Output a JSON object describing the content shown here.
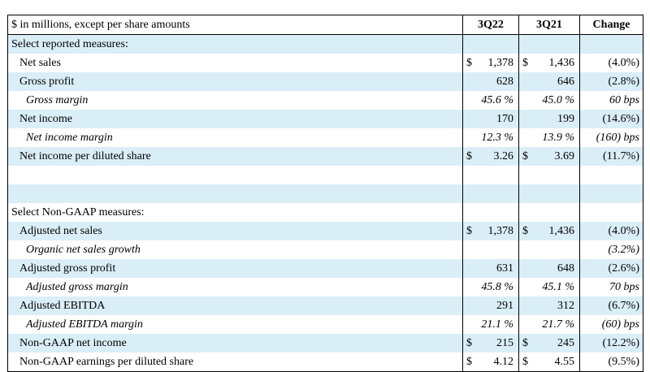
{
  "header": {
    "label": "$ in millions, except per share amounts",
    "col_a": "3Q22",
    "col_b": "3Q21",
    "col_chg": "Change"
  },
  "rows": [
    {
      "label": "Select reported measures:",
      "a": "",
      "a_cur": "",
      "b": "",
      "b_cur": "",
      "chg": "",
      "style": "section"
    },
    {
      "label": "Net sales",
      "a": "1,378",
      "a_cur": "$",
      "b": "1,436",
      "b_cur": "$",
      "chg": "(4.0%)",
      "style": "item"
    },
    {
      "label": "Gross profit",
      "a": "628",
      "a_cur": "",
      "b": "646",
      "b_cur": "",
      "chg": "(2.8%)",
      "style": "item"
    },
    {
      "label": "Gross margin",
      "a": "45.6 %",
      "a_cur": "",
      "b": "45.0 %",
      "b_cur": "",
      "chg": "60 bps",
      "style": "italic"
    },
    {
      "label": "Net income",
      "a": "170",
      "a_cur": "",
      "b": "199",
      "b_cur": "",
      "chg": "(14.6%)",
      "style": "item"
    },
    {
      "label": "Net income margin",
      "a": "12.3 %",
      "a_cur": "",
      "b": "13.9 %",
      "b_cur": "",
      "chg": "(160) bps",
      "style": "italic"
    },
    {
      "label": "Net income per diluted share",
      "a": "3.26",
      "a_cur": "$",
      "b": "3.69",
      "b_cur": "$",
      "chg": "(11.7%)",
      "style": "item"
    },
    {
      "label": "",
      "a": "",
      "a_cur": "",
      "b": "",
      "b_cur": "",
      "chg": "",
      "style": "blank"
    },
    {
      "label": "",
      "a": "",
      "a_cur": "",
      "b": "",
      "b_cur": "",
      "chg": "",
      "style": "blank"
    },
    {
      "label": "Select Non-GAAP measures:",
      "a": "",
      "a_cur": "",
      "b": "",
      "b_cur": "",
      "chg": "",
      "style": "section"
    },
    {
      "label": "Adjusted net sales",
      "a": "1,378",
      "a_cur": "$",
      "b": "1,436",
      "b_cur": "$",
      "chg": "(4.0%)",
      "style": "item"
    },
    {
      "label": "Organic net sales growth",
      "a": "",
      "a_cur": "",
      "b": "",
      "b_cur": "",
      "chg": "(3.2%)",
      "style": "italic"
    },
    {
      "label": "Adjusted gross profit",
      "a": "631",
      "a_cur": "",
      "b": "648",
      "b_cur": "",
      "chg": "(2.6%)",
      "style": "item"
    },
    {
      "label": "Adjusted gross margin",
      "a": "45.8 %",
      "a_cur": "",
      "b": "45.1 %",
      "b_cur": "",
      "chg": "70 bps",
      "style": "italic"
    },
    {
      "label": "Adjusted EBITDA",
      "a": "291",
      "a_cur": "",
      "b": "312",
      "b_cur": "",
      "chg": "(6.7%)",
      "style": "item"
    },
    {
      "label": "Adjusted EBITDA margin",
      "a": "21.1 %",
      "a_cur": "",
      "b": "21.7 %",
      "b_cur": "",
      "chg": "(60) bps",
      "style": "italic"
    },
    {
      "label": "Non-GAAP net income",
      "a": "215",
      "a_cur": "$",
      "b": "245",
      "b_cur": "$",
      "chg": "(12.2%)",
      "style": "item"
    },
    {
      "label": "Non-GAAP earnings per diluted share",
      "a": "4.12",
      "a_cur": "$",
      "b": "4.55",
      "b_cur": "$",
      "chg": "(9.5%)",
      "style": "item"
    }
  ]
}
